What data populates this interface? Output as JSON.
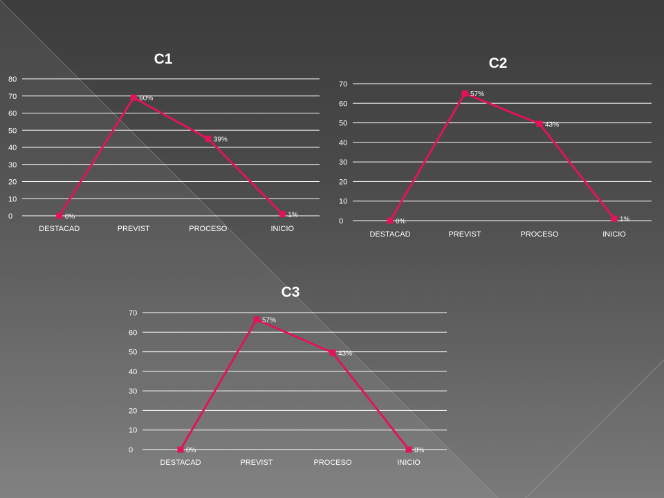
{
  "chart_data": [
    {
      "type": "line",
      "title": "C1",
      "categories": [
        "DESTACAD",
        "PREVIST",
        "PROCESO",
        "INICIO"
      ],
      "series": [
        {
          "values": [
            0,
            69,
            45,
            1
          ]
        }
      ],
      "data_labels": [
        "0%",
        "60%",
        "39%",
        "1%"
      ],
      "yticks": [
        0,
        10,
        20,
        30,
        40,
        50,
        60,
        70,
        80
      ],
      "ylim": [
        0,
        80
      ],
      "grid": true,
      "legend": "none",
      "color": "#e0145a"
    },
    {
      "type": "line",
      "title": "C2",
      "categories": [
        "DESTACAD",
        "PREVIST",
        "PROCESO",
        "INICIO"
      ],
      "series": [
        {
          "values": [
            0,
            65,
            49.5,
            1
          ]
        }
      ],
      "data_labels": [
        "0%",
        "57%",
        "43%",
        "1%"
      ],
      "yticks": [
        0,
        10,
        20,
        30,
        40,
        50,
        60,
        70
      ],
      "ylim": [
        0,
        70
      ],
      "grid": true,
      "legend": "none",
      "color": "#e0145a"
    },
    {
      "type": "line",
      "title": "C3",
      "categories": [
        "DESTACAD",
        "PREVIST",
        "PROCESO",
        "INICIO"
      ],
      "series": [
        {
          "values": [
            0,
            66.5,
            49.5,
            0
          ]
        }
      ],
      "data_labels": [
        "0%",
        "57%",
        "43%",
        "0%"
      ],
      "yticks": [
        0,
        10,
        20,
        30,
        40,
        50,
        60,
        70
      ],
      "ylim": [
        0,
        70
      ],
      "grid": true,
      "legend": "none",
      "color": "#e0145a"
    }
  ]
}
